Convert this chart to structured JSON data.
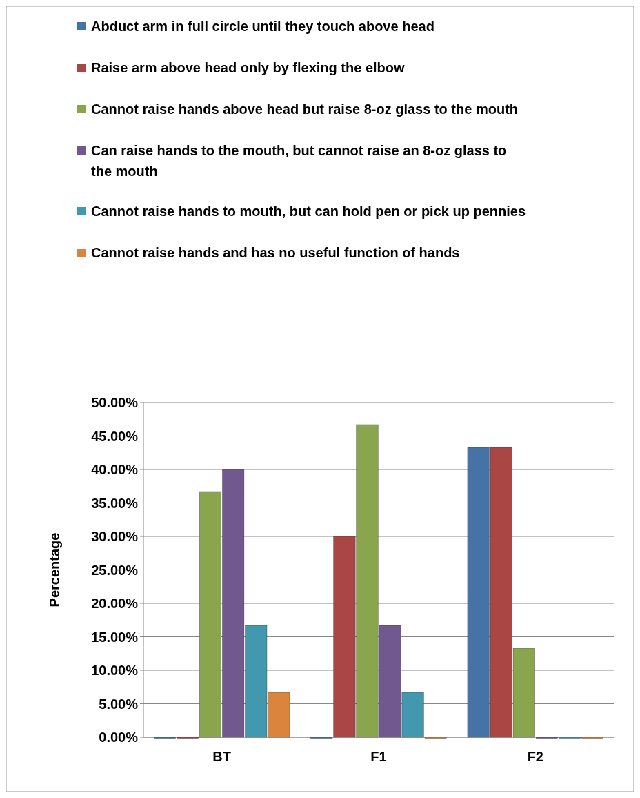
{
  "chart_data": {
    "type": "bar",
    "ylabel": "Percentage",
    "categories": [
      "BT",
      "F1",
      "F2"
    ],
    "series": [
      {
        "name": "Abduct arm in full circle until they touch above head",
        "color": "#4572a7",
        "values": [
          0,
          0,
          43.3
        ]
      },
      {
        "name": "Raise arm above head only by flexing the elbow",
        "color": "#aa4643",
        "values": [
          0,
          30,
          43.3
        ]
      },
      {
        "name": "Cannot raise hands above head but raise 8-oz glass to the mouth",
        "color": "#89a54e",
        "values": [
          36.7,
          46.7,
          13.3
        ]
      },
      {
        "name": "Can raise hands to the mouth, but cannot raise an 8-oz glass to the mouth",
        "color": "#71588f",
        "values": [
          40,
          16.7,
          0
        ]
      },
      {
        "name": "Cannot raise hands to mouth, but can hold pen or pick up pennies",
        "color": "#4198af",
        "values": [
          16.7,
          6.7,
          0
        ]
      },
      {
        "name": "Cannot raise hands and has no useful function of hands",
        "color": "#db843d",
        "values": [
          6.7,
          0,
          0
        ]
      }
    ],
    "ylim": [
      0,
      50
    ],
    "yticks": [
      {
        "value": 0,
        "label": "0.00%"
      },
      {
        "value": 5,
        "label": "5.00%"
      },
      {
        "value": 10,
        "label": "10.00%"
      },
      {
        "value": 15,
        "label": "15.00%"
      },
      {
        "value": 20,
        "label": "20.00%"
      },
      {
        "value": 25,
        "label": "25.00%"
      },
      {
        "value": 30,
        "label": "30.00%"
      },
      {
        "value": 35,
        "label": "35.00%"
      },
      {
        "value": 40,
        "label": "40.00%"
      },
      {
        "value": 45,
        "label": "45.00%"
      },
      {
        "value": 50,
        "label": "50.00%"
      }
    ],
    "grid": "y",
    "legend": "top"
  }
}
